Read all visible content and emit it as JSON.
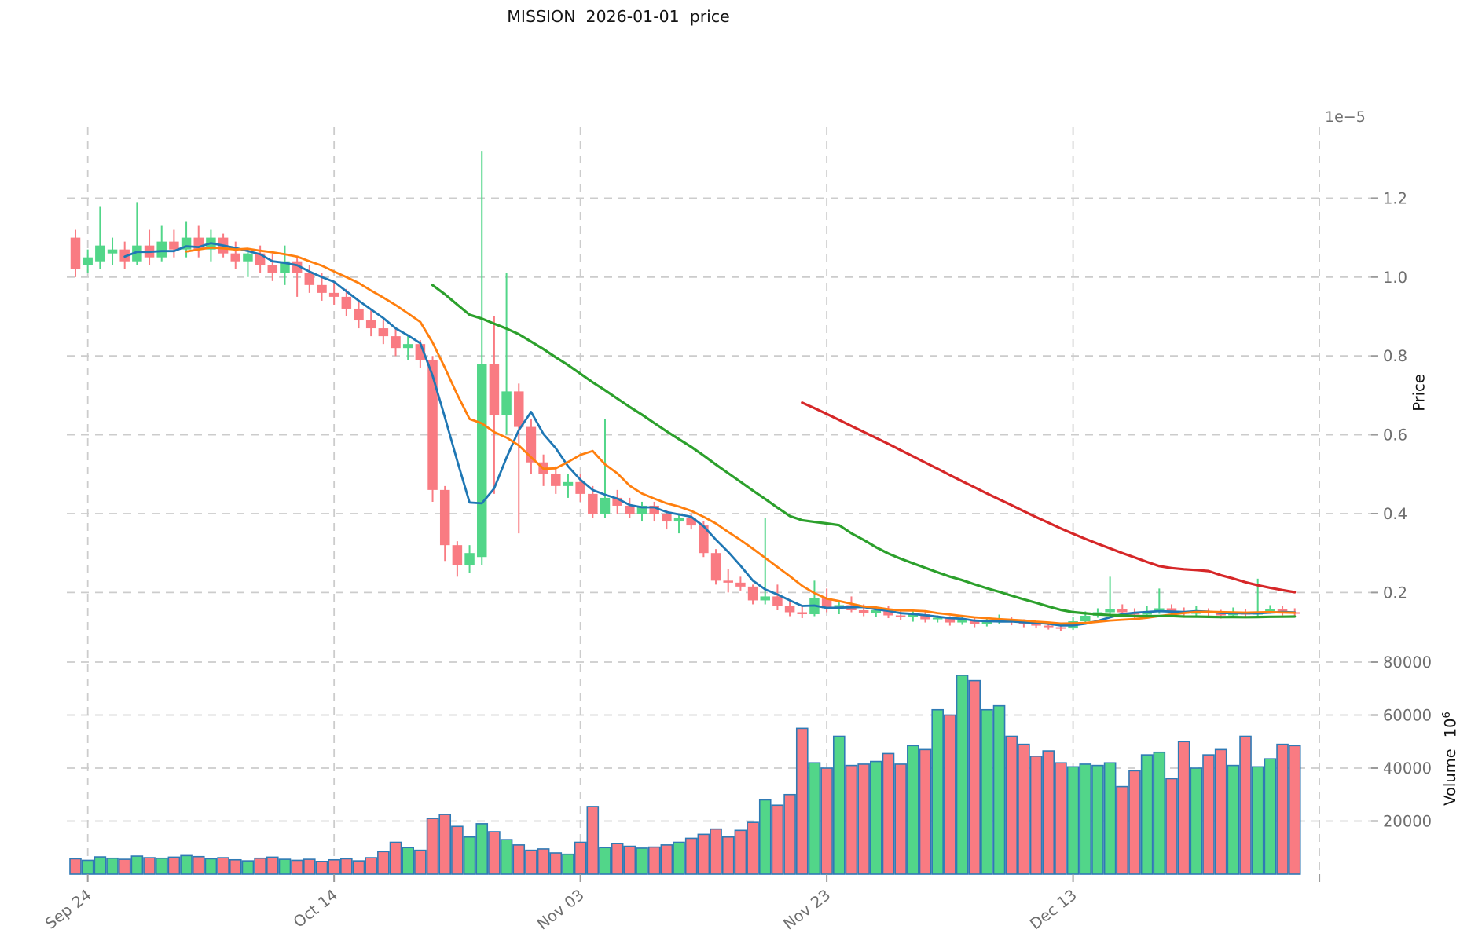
{
  "title": "MISSION  2026-01-01  price",
  "chart_data": {
    "type": "candlestick",
    "grid": true,
    "price_axis": {
      "label": "Price",
      "offset_text": "1e−5",
      "unit_multiplier": "1e-5",
      "ticks": [
        1.2,
        1.0,
        0.8,
        0.6,
        0.4,
        0.2
      ]
    },
    "volume_axis": {
      "label": "Volume",
      "multiplier_base": "10",
      "multiplier_exp": "6",
      "ticks": [
        80000,
        60000,
        40000,
        20000
      ]
    },
    "x_axis": {
      "ticks": [
        {
          "label": "Sep 24",
          "day": 1
        },
        {
          "label": "Oct 14",
          "day": 21
        },
        {
          "label": "Nov 03",
          "day": 41
        },
        {
          "label": "Nov 23",
          "day": 61
        },
        {
          "label": "Dec 13",
          "day": 81
        },
        {
          "label": "",
          "day": 101
        }
      ]
    },
    "moving_averages": [
      {
        "name": "mav-5",
        "window": 5,
        "color": "#1f77b4",
        "width": 2.8
      },
      {
        "name": "mav-10",
        "window": 10,
        "color": "#ff7f0e",
        "width": 2.8
      },
      {
        "name": "mav-30",
        "window": 30,
        "color": "#2ca02c",
        "width": 3.2
      },
      {
        "name": "mav-60",
        "window": 60,
        "color": "#d62728",
        "width": 3.2
      }
    ],
    "colors": {
      "up": "#52d689",
      "down": "#f97b82",
      "volume_edge": "#2f7ab5",
      "grid": "#cccccc",
      "tick_mark": "#9b9b9b",
      "tick_label": "#6e6e6e"
    },
    "candles_format": [
      "open",
      "high",
      "low",
      "close",
      "volume"
    ],
    "candles": [
      [
        1.1,
        1.12,
        1.0,
        1.02,
        5800
      ],
      [
        1.03,
        1.07,
        1.01,
        1.05,
        5200
      ],
      [
        1.04,
        1.18,
        1.02,
        1.08,
        6500
      ],
      [
        1.06,
        1.1,
        1.03,
        1.07,
        6000
      ],
      [
        1.07,
        1.09,
        1.02,
        1.04,
        5600
      ],
      [
        1.04,
        1.19,
        1.03,
        1.08,
        6800
      ],
      [
        1.08,
        1.12,
        1.03,
        1.05,
        6200
      ],
      [
        1.05,
        1.13,
        1.04,
        1.09,
        6000
      ],
      [
        1.09,
        1.12,
        1.05,
        1.07,
        6400
      ],
      [
        1.07,
        1.14,
        1.05,
        1.1,
        7000
      ],
      [
        1.1,
        1.13,
        1.05,
        1.07,
        6600
      ],
      [
        1.07,
        1.12,
        1.04,
        1.1,
        5800
      ],
      [
        1.1,
        1.11,
        1.05,
        1.06,
        6200
      ],
      [
        1.06,
        1.09,
        1.02,
        1.04,
        5400
      ],
      [
        1.04,
        1.07,
        1.0,
        1.06,
        5000
      ],
      [
        1.06,
        1.08,
        1.01,
        1.03,
        6000
      ],
      [
        1.03,
        1.06,
        0.99,
        1.01,
        6400
      ],
      [
        1.01,
        1.08,
        0.98,
        1.04,
        5600
      ],
      [
        1.04,
        1.05,
        0.95,
        1.01,
        5200
      ],
      [
        1.01,
        1.03,
        0.96,
        0.98,
        5600
      ],
      [
        0.98,
        1.01,
        0.94,
        0.96,
        4800
      ],
      [
        0.96,
        0.99,
        0.93,
        0.95,
        5400
      ],
      [
        0.95,
        0.97,
        0.9,
        0.92,
        5800
      ],
      [
        0.92,
        0.94,
        0.87,
        0.89,
        5000
      ],
      [
        0.89,
        0.92,
        0.85,
        0.87,
        6200
      ],
      [
        0.87,
        0.89,
        0.83,
        0.85,
        8500
      ],
      [
        0.85,
        0.87,
        0.8,
        0.82,
        12000
      ],
      [
        0.82,
        0.85,
        0.79,
        0.83,
        10000
      ],
      [
        0.83,
        0.84,
        0.77,
        0.79,
        9000
      ],
      [
        0.79,
        0.8,
        0.43,
        0.46,
        21000
      ],
      [
        0.46,
        0.47,
        0.28,
        0.32,
        22500
      ],
      [
        0.32,
        0.33,
        0.24,
        0.27,
        18000
      ],
      [
        0.27,
        0.32,
        0.25,
        0.3,
        14000
      ],
      [
        0.29,
        1.32,
        0.27,
        0.78,
        19000
      ],
      [
        0.78,
        0.9,
        0.45,
        0.65,
        16000
      ],
      [
        0.65,
        1.01,
        0.6,
        0.71,
        13000
      ],
      [
        0.71,
        0.73,
        0.35,
        0.62,
        11000
      ],
      [
        0.62,
        0.64,
        0.5,
        0.53,
        9000
      ],
      [
        0.53,
        0.55,
        0.47,
        0.5,
        9500
      ],
      [
        0.5,
        0.52,
        0.45,
        0.47,
        8000
      ],
      [
        0.47,
        0.5,
        0.44,
        0.48,
        7500
      ],
      [
        0.48,
        0.5,
        0.43,
        0.45,
        12000
      ],
      [
        0.45,
        0.47,
        0.39,
        0.4,
        25500
      ],
      [
        0.4,
        0.64,
        0.39,
        0.44,
        10000
      ],
      [
        0.44,
        0.46,
        0.4,
        0.42,
        11500
      ],
      [
        0.42,
        0.44,
        0.39,
        0.4,
        10500
      ],
      [
        0.4,
        0.43,
        0.38,
        0.42,
        9800
      ],
      [
        0.42,
        0.43,
        0.38,
        0.4,
        10200
      ],
      [
        0.4,
        0.41,
        0.36,
        0.38,
        11000
      ],
      [
        0.38,
        0.4,
        0.35,
        0.39,
        12000
      ],
      [
        0.39,
        0.4,
        0.36,
        0.37,
        13500
      ],
      [
        0.37,
        0.38,
        0.29,
        0.3,
        15000
      ],
      [
        0.3,
        0.31,
        0.22,
        0.23,
        17000
      ],
      [
        0.23,
        0.26,
        0.2,
        0.225,
        14000
      ],
      [
        0.225,
        0.24,
        0.205,
        0.215,
        16500
      ],
      [
        0.215,
        0.22,
        0.17,
        0.18,
        19500
      ],
      [
        0.18,
        0.39,
        0.17,
        0.19,
        28000
      ],
      [
        0.19,
        0.22,
        0.155,
        0.165,
        26000
      ],
      [
        0.165,
        0.18,
        0.14,
        0.15,
        30000
      ],
      [
        0.15,
        0.165,
        0.135,
        0.145,
        55000
      ],
      [
        0.145,
        0.23,
        0.14,
        0.185,
        42000
      ],
      [
        0.185,
        0.21,
        0.15,
        0.16,
        40000
      ],
      [
        0.16,
        0.18,
        0.145,
        0.168,
        52000
      ],
      [
        0.168,
        0.19,
        0.15,
        0.155,
        41000
      ],
      [
        0.155,
        0.17,
        0.14,
        0.148,
        41500
      ],
      [
        0.148,
        0.165,
        0.138,
        0.155,
        42500
      ],
      [
        0.155,
        0.165,
        0.135,
        0.142,
        45500
      ],
      [
        0.142,
        0.155,
        0.13,
        0.138,
        41500
      ],
      [
        0.138,
        0.152,
        0.126,
        0.145,
        48500
      ],
      [
        0.145,
        0.15,
        0.124,
        0.132,
        47000
      ],
      [
        0.132,
        0.142,
        0.124,
        0.136,
        62000
      ],
      [
        0.136,
        0.14,
        0.116,
        0.124,
        60000
      ],
      [
        0.124,
        0.14,
        0.118,
        0.13,
        75000
      ],
      [
        0.13,
        0.136,
        0.112,
        0.121,
        73000
      ],
      [
        0.121,
        0.136,
        0.114,
        0.126,
        62000
      ],
      [
        0.126,
        0.144,
        0.12,
        0.131,
        63500
      ],
      [
        0.131,
        0.138,
        0.117,
        0.125,
        52000
      ],
      [
        0.125,
        0.132,
        0.112,
        0.12,
        49000
      ],
      [
        0.12,
        0.128,
        0.109,
        0.116,
        44500
      ],
      [
        0.116,
        0.124,
        0.106,
        0.112,
        46500
      ],
      [
        0.112,
        0.12,
        0.103,
        0.109,
        42000
      ],
      [
        0.109,
        0.138,
        0.105,
        0.127,
        40500
      ],
      [
        0.127,
        0.152,
        0.122,
        0.141,
        41500
      ],
      [
        0.141,
        0.16,
        0.136,
        0.15,
        41000
      ],
      [
        0.15,
        0.24,
        0.144,
        0.158,
        42000
      ],
      [
        0.158,
        0.17,
        0.14,
        0.15,
        33000
      ],
      [
        0.15,
        0.16,
        0.135,
        0.144,
        39000
      ],
      [
        0.144,
        0.165,
        0.138,
        0.152,
        45000
      ],
      [
        0.152,
        0.21,
        0.146,
        0.16,
        46000
      ],
      [
        0.16,
        0.17,
        0.142,
        0.152,
        36000
      ],
      [
        0.152,
        0.162,
        0.136,
        0.146,
        50000
      ],
      [
        0.146,
        0.166,
        0.14,
        0.153,
        40000
      ],
      [
        0.153,
        0.16,
        0.138,
        0.147,
        45000
      ],
      [
        0.147,
        0.156,
        0.134,
        0.142,
        47000
      ],
      [
        0.142,
        0.162,
        0.136,
        0.15,
        41000
      ],
      [
        0.15,
        0.158,
        0.135,
        0.144,
        52000
      ],
      [
        0.144,
        0.235,
        0.138,
        0.152,
        40500
      ],
      [
        0.152,
        0.168,
        0.146,
        0.157,
        43500
      ],
      [
        0.157,
        0.165,
        0.142,
        0.15,
        49000
      ],
      [
        0.15,
        0.16,
        0.139,
        0.146,
        48500
      ]
    ]
  }
}
